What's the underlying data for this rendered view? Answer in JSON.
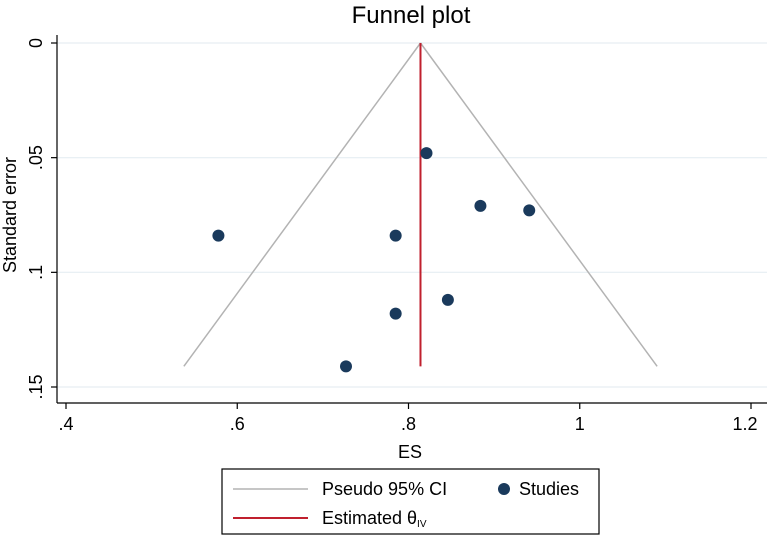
{
  "chart_data": {
    "type": "scatter",
    "title": "Funnel plot",
    "xlabel": "ES",
    "ylabel": "Standard error",
    "xlim": [
      0.4,
      1.2
    ],
    "ylim": [
      0,
      0.15
    ],
    "y_reversed": true,
    "x_ticks": [
      {
        "value": 0.4,
        "label": ".4"
      },
      {
        "value": 0.6,
        "label": ".6"
      },
      {
        "value": 0.8,
        "label": ".8"
      },
      {
        "value": 1.0,
        "label": "1"
      },
      {
        "value": 1.2,
        "label": "1.2"
      }
    ],
    "y_ticks": [
      {
        "value": 0,
        "label": "0"
      },
      {
        "value": 0.05,
        "label": ".05"
      },
      {
        "value": 0.1,
        "label": ".1"
      },
      {
        "value": 0.15,
        "label": ".15"
      }
    ],
    "grid": "horizontal",
    "series": [
      {
        "name": "Studies",
        "color": "#1a3a5c",
        "points": [
          {
            "x": 0.821,
            "y": 0.048
          },
          {
            "x": 0.884,
            "y": 0.071
          },
          {
            "x": 0.941,
            "y": 0.073
          },
          {
            "x": 0.578,
            "y": 0.084
          },
          {
            "x": 0.785,
            "y": 0.084
          },
          {
            "x": 0.846,
            "y": 0.112
          },
          {
            "x": 0.785,
            "y": 0.118
          },
          {
            "x": 0.727,
            "y": 0.141
          }
        ]
      }
    ],
    "pseudo_ci": {
      "name": "Pseudo 95% CI",
      "color": "#b3b3b3",
      "center": 0.814,
      "se_max": 0.141
    },
    "estimate_line": {
      "name": "Estimated θ",
      "subscript": "IV",
      "color": "#c0202e",
      "x": 0.814,
      "y_from": 0,
      "y_to": 0.141
    },
    "legend": {
      "position": "bottom"
    }
  }
}
